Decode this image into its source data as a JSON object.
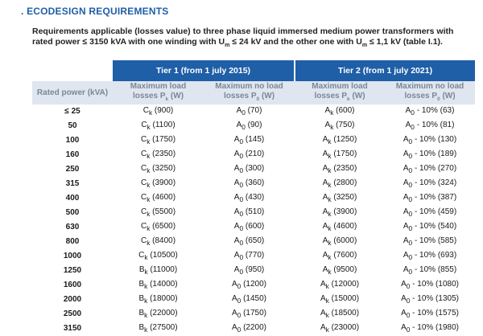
{
  "section_title": ". ECODESIGN REQUIREMENTS",
  "intro": {
    "part1": "Requirements applicable (losses value) to three phase liquid immersed medium power transformers with rated power ≤ 3150 kVA with one winding with U",
    "sub1": "m",
    "part2": " ≤ 24 kV and the other one with U",
    "sub2": "m",
    "part3": " ≤ 1,1 kV (table I.1)."
  },
  "table": {
    "tiers": [
      "Tier 1 (from 1 july 2015)",
      "Tier 2 (from 1 july 2021)"
    ],
    "columns": {
      "rated_power": "Rated power (kVA)",
      "load_losses_line1": "Maximum load",
      "load_losses_line2": "losses P",
      "load_losses_sub": "k",
      "load_losses_unit": " (W)",
      "noload_losses_line1": "Maximum no load",
      "noload_losses_line2": "losses P",
      "noload_losses_sub": "0",
      "noload_losses_unit": " (W)"
    },
    "rows": [
      {
        "power": "≤ 25",
        "t1_load": "C",
        "t1_load_val": "(900)",
        "t1_noload": "A",
        "t1_noload_val": "(70)",
        "t2_load": "A",
        "t2_load_val": "(600)",
        "t2_noload": "A",
        "t2_noload_val": "- 10% (63)"
      },
      {
        "power": "50",
        "t1_load": "C",
        "t1_load_val": "(1100)",
        "t1_noload": "A",
        "t1_noload_val": "(90)",
        "t2_load": "A",
        "t2_load_val": "(750)",
        "t2_noload": "A",
        "t2_noload_val": "- 10% (81)"
      },
      {
        "power": "100",
        "t1_load": "C",
        "t1_load_val": "(1750)",
        "t1_noload": "A",
        "t1_noload_val": "(145)",
        "t2_load": "A",
        "t2_load_val": "(1250)",
        "t2_noload": "A",
        "t2_noload_val": "- 10% (130)"
      },
      {
        "power": "160",
        "t1_load": "C",
        "t1_load_val": "(2350)",
        "t1_noload": "A",
        "t1_noload_val": "(210)",
        "t2_load": "A",
        "t2_load_val": "(1750)",
        "t2_noload": "A",
        "t2_noload_val": "- 10% (189)"
      },
      {
        "power": "250",
        "t1_load": "C",
        "t1_load_val": "(3250)",
        "t1_noload": "A",
        "t1_noload_val": "(300)",
        "t2_load": "A",
        "t2_load_val": "(2350)",
        "t2_noload": "A",
        "t2_noload_val": "- 10% (270)"
      },
      {
        "power": "315",
        "t1_load": "C",
        "t1_load_val": "(3900)",
        "t1_noload": "A",
        "t1_noload_val": "(360)",
        "t2_load": "A",
        "t2_load_val": "(2800)",
        "t2_noload": "A",
        "t2_noload_val": "- 10% (324)"
      },
      {
        "power": "400",
        "t1_load": "C",
        "t1_load_val": "(4600)",
        "t1_noload": "A",
        "t1_noload_val": "(430)",
        "t2_load": "A",
        "t2_load_val": "(3250)",
        "t2_noload": "A",
        "t2_noload_val": "- 10% (387)"
      },
      {
        "power": "500",
        "t1_load": "C",
        "t1_load_val": "(5500)",
        "t1_noload": "A",
        "t1_noload_val": "(510)",
        "t2_load": "A",
        "t2_load_val": "(3900)",
        "t2_noload": "A",
        "t2_noload_val": "- 10% (459)"
      },
      {
        "power": "630",
        "t1_load": "C",
        "t1_load_val": "(6500)",
        "t1_noload": "A",
        "t1_noload_val": "(600)",
        "t2_load": "A",
        "t2_load_val": "(4600)",
        "t2_noload": "A",
        "t2_noload_val": "- 10% (540)"
      },
      {
        "power": "800",
        "t1_load": "C",
        "t1_load_val": "(8400)",
        "t1_noload": "A",
        "t1_noload_val": "(650)",
        "t2_load": "A",
        "t2_load_val": "(6000)",
        "t2_noload": "A",
        "t2_noload_val": "- 10% (585)"
      },
      {
        "power": "1000",
        "t1_load": "C",
        "t1_load_val": "(10500)",
        "t1_noload": "A",
        "t1_noload_val": "(770)",
        "t2_load": "A",
        "t2_load_val": "(7600)",
        "t2_noload": "A",
        "t2_noload_val": "- 10% (693)"
      },
      {
        "power": "1250",
        "t1_load": "B",
        "t1_load_val": "(11000)",
        "t1_noload": "A",
        "t1_noload_val": "(950)",
        "t2_load": "A",
        "t2_load_val": "(9500)",
        "t2_noload": "A",
        "t2_noload_val": "- 10% (855)"
      },
      {
        "power": "1600",
        "t1_load": "B",
        "t1_load_val": "(14000)",
        "t1_noload": "A",
        "t1_noload_val": "(1200)",
        "t2_load": "A",
        "t2_load_val": "(12000)",
        "t2_noload": "A",
        "t2_noload_val": "- 10% (1080)"
      },
      {
        "power": "2000",
        "t1_load": "B",
        "t1_load_val": "(18000)",
        "t1_noload": "A",
        "t1_noload_val": "(1450)",
        "t2_load": "A",
        "t2_load_val": "(15000)",
        "t2_noload": "A",
        "t2_noload_val": "- 10% (1305)"
      },
      {
        "power": "2500",
        "t1_load": "B",
        "t1_load_val": "(22000)",
        "t1_noload": "A",
        "t1_noload_val": "(1750)",
        "t2_load": "A",
        "t2_load_val": "(18500)",
        "t2_noload": "A",
        "t2_noload_val": "- 10% (1575)"
      },
      {
        "power": "3150",
        "t1_load": "B",
        "t1_load_val": "(27500)",
        "t1_noload": "A",
        "t1_noload_val": "(2200)",
        "t2_load": "A",
        "t2_load_val": "(23000)",
        "t2_noload": "A",
        "t2_noload_val": "- 10% (1980)"
      }
    ],
    "load_sub": "k",
    "noload_sub": "0"
  },
  "colors": {
    "accent_blue": "#1f5fa7",
    "header_bg": "#dfe6f0",
    "header_text": "#7a8797"
  }
}
